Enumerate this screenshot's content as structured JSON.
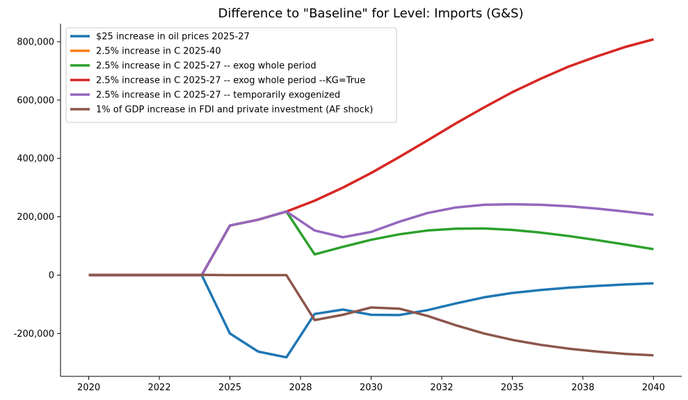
{
  "chart_data": {
    "type": "line",
    "title": "Difference to \"Baseline\" for Level: Imports (G&S)",
    "xlabel": "",
    "ylabel": "",
    "x": [
      2020,
      2021,
      2022,
      2023,
      2024,
      2025,
      2026,
      2027,
      2028,
      2029,
      2030,
      2031,
      2032,
      2033,
      2034,
      2035,
      2036,
      2037,
      2038,
      2039,
      2040
    ],
    "x_tick_values": [
      2020,
      2022.5,
      2025,
      2027.5,
      2030,
      2032.5,
      2035,
      2037.5,
      2040
    ],
    "x_tick_labels": [
      "2020",
      "2022",
      "2025",
      "2028",
      "2030",
      "2032",
      "2035",
      "2038",
      "2040"
    ],
    "xlim": [
      2019,
      2041
    ],
    "ylim": [
      -347000,
      862000
    ],
    "y_tick_values": [
      -200000,
      0,
      200000,
      400000,
      600000,
      800000
    ],
    "y_tick_labels": [
      "-200,000",
      "0",
      "200,000",
      "400,000",
      "600,000",
      "800,000"
    ],
    "grid": false,
    "legend_position": "top-left",
    "series": [
      {
        "name": "$25 increase in oil prices 2025-27",
        "color": "#1f77b4",
        "values": [
          0,
          0,
          0,
          0,
          0,
          -200000,
          -262000,
          -282000,
          -133000,
          -118000,
          -136000,
          -137000,
          -120000,
          -97000,
          -76000,
          -61000,
          -51000,
          -43000,
          -37000,
          -32000,
          -28000
        ]
      },
      {
        "name": "2.5% increase in C 2025-40",
        "color": "#ff7f0e",
        "values": [
          0,
          0,
          0,
          0,
          0,
          170000,
          190000,
          218000,
          255000,
          300000,
          350000,
          405000,
          462000,
          520000,
          575000,
          627000,
          673000,
          715000,
          750000,
          782000,
          808000
        ]
      },
      {
        "name": "2.5% increase in C 2025-27 -- exog whole period",
        "color": "#2ca02c",
        "values": [
          0,
          0,
          0,
          0,
          0,
          170000,
          190000,
          218000,
          71000,
          97000,
          121000,
          140000,
          153000,
          159000,
          160000,
          155000,
          146000,
          134000,
          120000,
          105000,
          89000
        ]
      },
      {
        "name": "2.5% increase in C 2025-27 -- exog whole period --KG=True",
        "color": "#d62728",
        "values": [
          0,
          0,
          0,
          0,
          0,
          170000,
          190000,
          218000,
          255000,
          300000,
          350000,
          405000,
          462000,
          520000,
          575000,
          627000,
          673000,
          715000,
          750000,
          782000,
          808000
        ]
      },
      {
        "name": "2.5% increase in C 2025-27 -- temporarily exogenized",
        "color": "#9467bd",
        "values": [
          0,
          0,
          0,
          0,
          0,
          170000,
          190000,
          218000,
          153000,
          130000,
          148000,
          183000,
          213000,
          232000,
          241000,
          243000,
          241000,
          236000,
          228000,
          218000,
          207000
        ]
      },
      {
        "name": "1% of GDP increase in FDI and private investment (AF shock)",
        "color": "#8c564b",
        "values": [
          1000,
          1000,
          1000,
          1000,
          1000,
          0,
          0,
          0,
          -154000,
          -136000,
          -111000,
          -115000,
          -140000,
          -172000,
          -200000,
          -222000,
          -239000,
          -252000,
          -262000,
          -270000,
          -275000
        ]
      }
    ]
  }
}
